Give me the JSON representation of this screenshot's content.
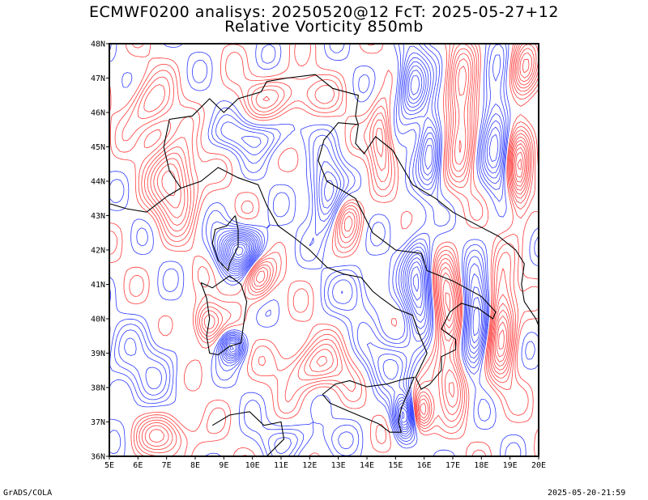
{
  "title": {
    "line1": "ECMWF0200 analisys: 20250520@12 FcT: 2025-05-27+12",
    "line2": "Relative Vorticity 850mb"
  },
  "map": {
    "lon_range": [
      5,
      20
    ],
    "lat_range": [
      36,
      48
    ],
    "lon_labels": [
      "5E",
      "6E",
      "7E",
      "8E",
      "9E",
      "10E",
      "11E",
      "12E",
      "13E",
      "14E",
      "15E",
      "16E",
      "17E",
      "18E",
      "19E",
      "20E"
    ],
    "lat_labels": [
      "36N",
      "37N",
      "38N",
      "39N",
      "40N",
      "41N",
      "42N",
      "43N",
      "44N",
      "45N",
      "46N",
      "47N",
      "48N"
    ],
    "colors": {
      "positive_vorticity": "#ff3b3b",
      "negative_vorticity": "#2e3bff",
      "coastline": "#000000",
      "frame": "#000000"
    }
  },
  "footer": {
    "left": "GrADS/COLA",
    "right": "2025-05-20-21:59"
  }
}
